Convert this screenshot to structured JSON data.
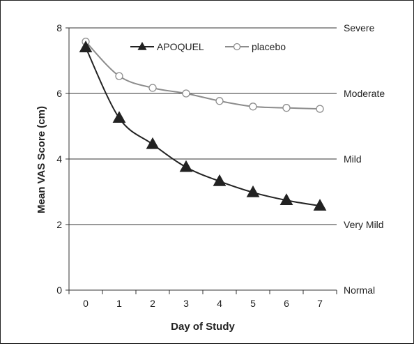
{
  "chart_data": {
    "type": "line",
    "title": "",
    "xlabel": "Day of Study",
    "ylabel": "Mean VAS Score (cm)",
    "x": [
      0,
      1,
      2,
      3,
      4,
      5,
      6,
      7
    ],
    "xlim": [
      -0.5,
      7.5
    ],
    "ylim": [
      0,
      8
    ],
    "y_ticks": [
      0,
      2,
      4,
      6,
      8
    ],
    "grid": "horizontal",
    "legend_position": "top-center",
    "severity_labels": [
      {
        "y": 8,
        "label": "Severe"
      },
      {
        "y": 6,
        "label": "Moderate"
      },
      {
        "y": 4,
        "label": "Mild"
      },
      {
        "y": 2,
        "label": "Very Mild"
      },
      {
        "y": 0,
        "label": "Normal"
      }
    ],
    "series": [
      {
        "name": "APOQUEL",
        "values": [
          7.4,
          5.25,
          4.45,
          3.75,
          3.32,
          2.98,
          2.74,
          2.57
        ],
        "color": "#222222",
        "marker": "filled-triangle"
      },
      {
        "name": "placebo",
        "values": [
          7.58,
          6.53,
          6.17,
          6.0,
          5.77,
          5.6,
          5.56,
          5.53
        ],
        "color": "#8c8c8c",
        "marker": "open-circle"
      }
    ]
  }
}
